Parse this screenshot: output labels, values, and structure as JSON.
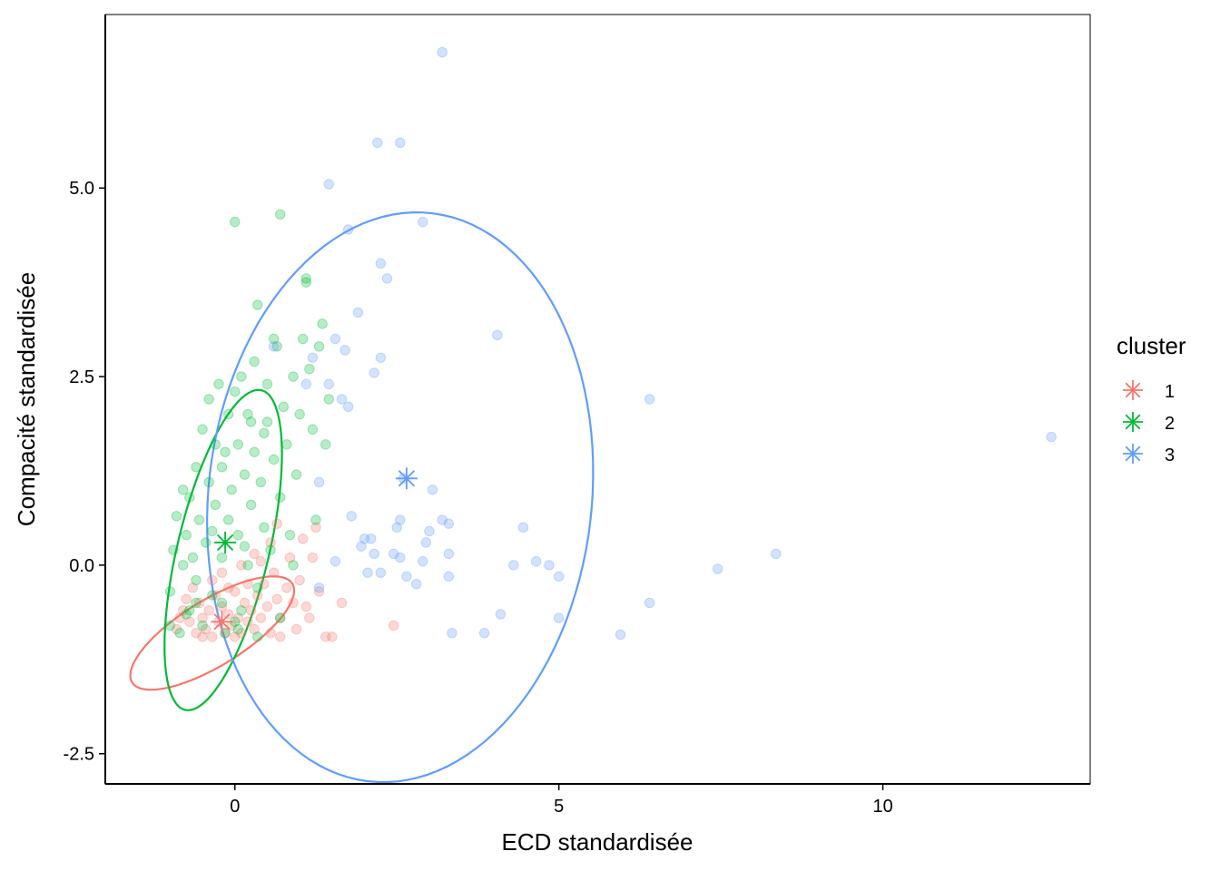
{
  "chart_data": {
    "type": "scatter",
    "title": "",
    "xlabel": "ECD standardisée",
    "ylabel": "Compacité standardisée",
    "xlim": [
      -2,
      13.2
    ],
    "ylim": [
      -2.9,
      7.3
    ],
    "x_ticks": [
      0,
      5,
      10
    ],
    "x_tick_labels": [
      "0",
      "5",
      "10"
    ],
    "y_ticks": [
      -2.5,
      0,
      2.5,
      5
    ],
    "y_tick_labels": [
      "-2.5",
      "0.0",
      "2.5",
      "5.0"
    ],
    "grid": false,
    "legend": {
      "title": "cluster",
      "placement": "right"
    },
    "series": [
      {
        "name": "1",
        "color": "#F8766D",
        "centroid": {
          "x": -0.2,
          "y": -0.75
        },
        "ellipse": {
          "cx": -0.35,
          "cy": -0.9,
          "rx": 1.4,
          "ry": 0.45,
          "angle_deg": 27
        },
        "points": [
          [
            -0.9,
            -0.85
          ],
          [
            -0.8,
            -0.6
          ],
          [
            -0.7,
            -0.75
          ],
          [
            -0.6,
            -0.9
          ],
          [
            -0.55,
            -0.5
          ],
          [
            -0.5,
            -0.7
          ],
          [
            -0.45,
            -0.85
          ],
          [
            -0.4,
            -0.6
          ],
          [
            -0.35,
            -0.95
          ],
          [
            -0.3,
            -0.4
          ],
          [
            -0.25,
            -0.75
          ],
          [
            -0.2,
            -0.55
          ],
          [
            -0.15,
            -0.9
          ],
          [
            -0.1,
            -0.65
          ],
          [
            -0.05,
            -0.8
          ],
          [
            0.0,
            -0.35
          ],
          [
            0.05,
            -0.7
          ],
          [
            0.1,
            -0.9
          ],
          [
            0.15,
            -0.5
          ],
          [
            0.2,
            -0.75
          ],
          [
            0.25,
            -0.6
          ],
          [
            0.3,
            -0.85
          ],
          [
            0.35,
            -0.4
          ],
          [
            0.4,
            -0.7
          ],
          [
            0.45,
            -0.25
          ],
          [
            0.5,
            -0.55
          ],
          [
            0.55,
            -0.9
          ],
          [
            0.6,
            -0.1
          ],
          [
            0.65,
            -0.45
          ],
          [
            0.7,
            -0.7
          ],
          [
            0.8,
            -0.3
          ],
          [
            0.9,
            -0.5
          ],
          [
            1.0,
            -0.2
          ],
          [
            1.1,
            -0.55
          ],
          [
            1.2,
            0.1
          ],
          [
            1.3,
            -0.35
          ],
          [
            1.4,
            -0.95
          ],
          [
            1.5,
            -0.95
          ],
          [
            1.65,
            -0.5
          ],
          [
            2.45,
            -0.8
          ],
          [
            -0.65,
            -0.3
          ],
          [
            -0.75,
            -0.45
          ],
          [
            -0.35,
            -0.2
          ],
          [
            -0.2,
            -0.1
          ],
          [
            0.1,
            0.0
          ],
          [
            0.3,
            0.15
          ],
          [
            0.55,
            0.3
          ],
          [
            0.85,
            0.1
          ],
          [
            1.05,
            0.35
          ],
          [
            1.25,
            0.5
          ],
          [
            -0.85,
            -0.7
          ],
          [
            -0.5,
            -0.95
          ],
          [
            0.0,
            -0.95
          ],
          [
            0.2,
            -0.25
          ],
          [
            0.7,
            -0.95
          ],
          [
            1.15,
            -0.7
          ],
          [
            -0.1,
            -0.3
          ],
          [
            0.4,
            0.05
          ],
          [
            0.65,
            0.55
          ],
          [
            0.95,
            -0.85
          ]
        ]
      },
      {
        "name": "2",
        "color": "#00BA38",
        "centroid": {
          "x": -0.15,
          "y": 0.3
        },
        "ellipse": {
          "cx": -0.18,
          "cy": 0.2,
          "rx": 2.2,
          "ry": 0.7,
          "angle_deg": 74
        },
        "points": [
          [
            -1.0,
            -0.8
          ],
          [
            -1.0,
            -0.35
          ],
          [
            -0.95,
            0.2
          ],
          [
            -0.9,
            0.65
          ],
          [
            -0.85,
            -0.9
          ],
          [
            -0.8,
            0.0
          ],
          [
            -0.75,
            0.4
          ],
          [
            -0.7,
            -0.6
          ],
          [
            -0.7,
            0.9
          ],
          [
            -0.65,
            0.1
          ],
          [
            -0.6,
            1.3
          ],
          [
            -0.6,
            -0.2
          ],
          [
            -0.55,
            0.6
          ],
          [
            -0.5,
            1.8
          ],
          [
            -0.5,
            -0.8
          ],
          [
            -0.45,
            0.3
          ],
          [
            -0.4,
            1.1
          ],
          [
            -0.4,
            2.2
          ],
          [
            -0.35,
            -0.4
          ],
          [
            -0.3,
            0.8
          ],
          [
            -0.3,
            1.6
          ],
          [
            -0.25,
            2.4
          ],
          [
            -0.2,
            0.1
          ],
          [
            -0.2,
            1.3
          ],
          [
            -0.15,
            -0.9
          ],
          [
            -0.1,
            0.6
          ],
          [
            -0.1,
            2.0
          ],
          [
            -0.05,
            1.0
          ],
          [
            0.0,
            4.55
          ],
          [
            0.0,
            2.3
          ],
          [
            0.05,
            0.4
          ],
          [
            0.05,
            1.6
          ],
          [
            0.1,
            -0.6
          ],
          [
            0.1,
            2.5
          ],
          [
            0.15,
            1.2
          ],
          [
            0.2,
            0.0
          ],
          [
            0.2,
            2.0
          ],
          [
            0.25,
            0.8
          ],
          [
            0.3,
            1.5
          ],
          [
            0.3,
            2.7
          ],
          [
            0.35,
            -0.3
          ],
          [
            0.35,
            3.45
          ],
          [
            0.4,
            1.1
          ],
          [
            0.45,
            0.5
          ],
          [
            0.5,
            2.4
          ],
          [
            0.5,
            1.9
          ],
          [
            0.55,
            0.2
          ],
          [
            0.6,
            1.4
          ],
          [
            0.65,
            2.9
          ],
          [
            0.7,
            0.9
          ],
          [
            0.7,
            -0.7
          ],
          [
            0.75,
            2.1
          ],
          [
            0.8,
            1.6
          ],
          [
            0.85,
            0.4
          ],
          [
            0.9,
            2.5
          ],
          [
            0.95,
            1.2
          ],
          [
            1.0,
            2.0
          ],
          [
            1.05,
            3.0
          ],
          [
            1.1,
            3.8
          ],
          [
            1.15,
            2.6
          ],
          [
            1.2,
            1.8
          ],
          [
            1.25,
            0.6
          ],
          [
            1.3,
            2.9
          ],
          [
            1.35,
            3.2
          ],
          [
            1.4,
            1.6
          ],
          [
            0.7,
            4.65
          ],
          [
            1.45,
            2.2
          ],
          [
            1.1,
            3.75
          ],
          [
            0.9,
            0.0
          ],
          [
            -0.2,
            -0.5
          ],
          [
            -0.6,
            -0.5
          ],
          [
            0.0,
            -0.75
          ],
          [
            -0.35,
            0.45
          ],
          [
            0.15,
            0.25
          ],
          [
            -0.8,
            1.0
          ],
          [
            0.45,
            1.75
          ],
          [
            0.6,
            3.0
          ],
          [
            0.25,
            1.9
          ],
          [
            -0.15,
            1.5
          ],
          [
            -0.75,
            -0.65
          ],
          [
            0.05,
            -0.85
          ],
          [
            0.35,
            -0.95
          ]
        ]
      },
      {
        "name": "3",
        "color": "#619CFF",
        "centroid": {
          "x": 2.65,
          "y": 1.15
        },
        "ellipse": {
          "cx": 2.55,
          "cy": 0.9,
          "rx": 3.8,
          "ry": 2.95,
          "angle_deg": 80
        },
        "points": [
          [
            3.2,
            6.8
          ],
          [
            2.2,
            5.6
          ],
          [
            2.55,
            5.6
          ],
          [
            1.45,
            5.05
          ],
          [
            2.9,
            4.55
          ],
          [
            1.75,
            4.45
          ],
          [
            2.25,
            4.0
          ],
          [
            2.35,
            3.8
          ],
          [
            1.9,
            3.35
          ],
          [
            4.05,
            3.05
          ],
          [
            1.55,
            3.0
          ],
          [
            1.7,
            2.85
          ],
          [
            2.25,
            2.75
          ],
          [
            1.2,
            2.75
          ],
          [
            2.15,
            2.55
          ],
          [
            1.45,
            2.4
          ],
          [
            0.6,
            2.9
          ],
          [
            1.65,
            2.2
          ],
          [
            1.75,
            2.1
          ],
          [
            1.1,
            2.4
          ],
          [
            6.4,
            2.2
          ],
          [
            12.6,
            1.7
          ],
          [
            2.6,
            1.15
          ],
          [
            3.05,
            1.0
          ],
          [
            1.3,
            1.1
          ],
          [
            1.8,
            0.65
          ],
          [
            2.55,
            0.6
          ],
          [
            3.2,
            0.6
          ],
          [
            3.3,
            0.55
          ],
          [
            2.5,
            0.5
          ],
          [
            3.0,
            0.45
          ],
          [
            4.45,
            0.5
          ],
          [
            2.0,
            0.35
          ],
          [
            2.1,
            0.35
          ],
          [
            2.95,
            0.3
          ],
          [
            1.95,
            0.25
          ],
          [
            3.3,
            0.15
          ],
          [
            2.45,
            0.15
          ],
          [
            2.55,
            0.1
          ],
          [
            4.65,
            0.05
          ],
          [
            2.9,
            0.05
          ],
          [
            4.3,
            0.0
          ],
          [
            4.85,
            0.0
          ],
          [
            2.05,
            -0.1
          ],
          [
            2.25,
            -0.1
          ],
          [
            2.65,
            -0.15
          ],
          [
            3.3,
            -0.15
          ],
          [
            5.0,
            -0.15
          ],
          [
            2.8,
            -0.25
          ],
          [
            1.3,
            -0.3
          ],
          [
            6.4,
            -0.5
          ],
          [
            4.1,
            -0.65
          ],
          [
            5.0,
            -0.7
          ],
          [
            3.35,
            -0.9
          ],
          [
            3.85,
            -0.9
          ],
          [
            5.95,
            -0.92
          ],
          [
            7.45,
            -0.05
          ],
          [
            8.35,
            0.15
          ],
          [
            2.15,
            0.15
          ],
          [
            1.55,
            0.05
          ]
        ]
      }
    ]
  }
}
